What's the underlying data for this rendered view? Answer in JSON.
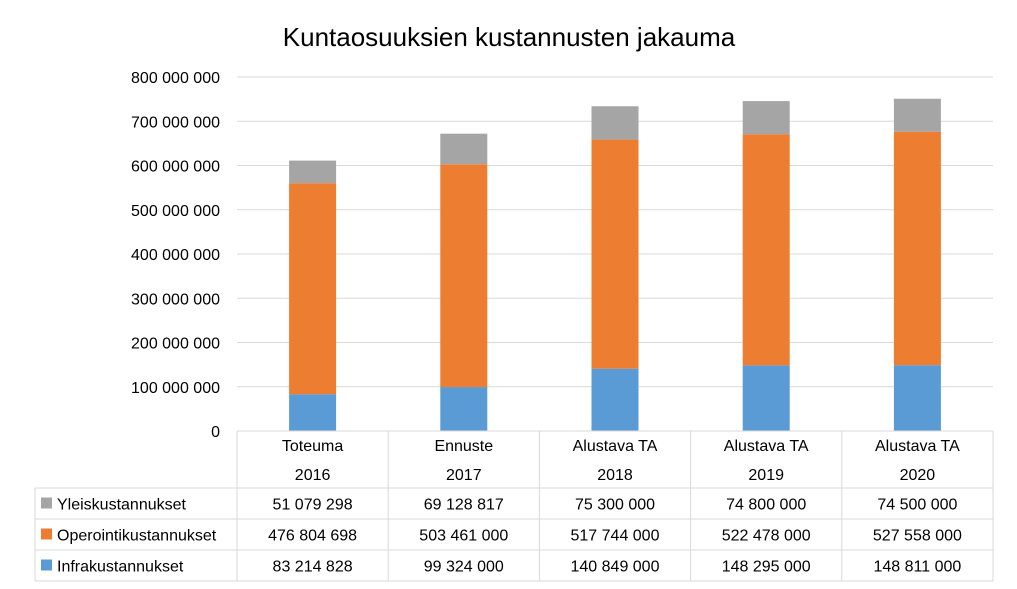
{
  "chart_data": {
    "type": "bar",
    "stacked": true,
    "title": "Kuntaosuuksien kustannusten jakauma",
    "categories": [
      [
        "Toteuma",
        "2016"
      ],
      [
        "Ennuste",
        "2017"
      ],
      [
        "Alustava TA",
        "2018"
      ],
      [
        "Alustava TA",
        "2019"
      ],
      [
        "Alustava TA",
        "2020"
      ]
    ],
    "ylim": [
      0,
      800000000
    ],
    "yticks": [
      0,
      100000000,
      200000000,
      300000000,
      400000000,
      500000000,
      600000000,
      700000000,
      800000000
    ],
    "ytick_labels": [
      "0",
      "100 000 000",
      "200 000 000",
      "300 000 000",
      "400 000 000",
      "500 000 000",
      "600 000 000",
      "700 000 000",
      "800 000 000"
    ],
    "grid": true,
    "series": [
      {
        "name": "Infrakustannukset",
        "color": "#5B9BD5",
        "values": [
          83214828,
          99324000,
          140849000,
          148295000,
          148811000
        ],
        "labels": [
          "83 214 828",
          "99 324 000",
          "140 849 000",
          "148 295 000",
          "148 811 000"
        ]
      },
      {
        "name": "Operointikustannukset",
        "color": "#ED7D31",
        "values": [
          476804698,
          503461000,
          517744000,
          522478000,
          527558000
        ],
        "labels": [
          "476 804 698",
          "503 461 000",
          "517 744 000",
          "522 478 000",
          "527 558 000"
        ]
      },
      {
        "name": "Yleiskustannukset",
        "color": "#A5A5A5",
        "values": [
          51079298,
          69128817,
          75300000,
          74800000,
          74500000
        ],
        "labels": [
          "51 079 298",
          "69 128 817",
          "75 300 000",
          "74 800 000",
          "74 500 000"
        ]
      }
    ],
    "data_table": {
      "row_order": [
        "Yleiskustannukset",
        "Operointikustannukset",
        "Infrakustannukset"
      ]
    }
  }
}
